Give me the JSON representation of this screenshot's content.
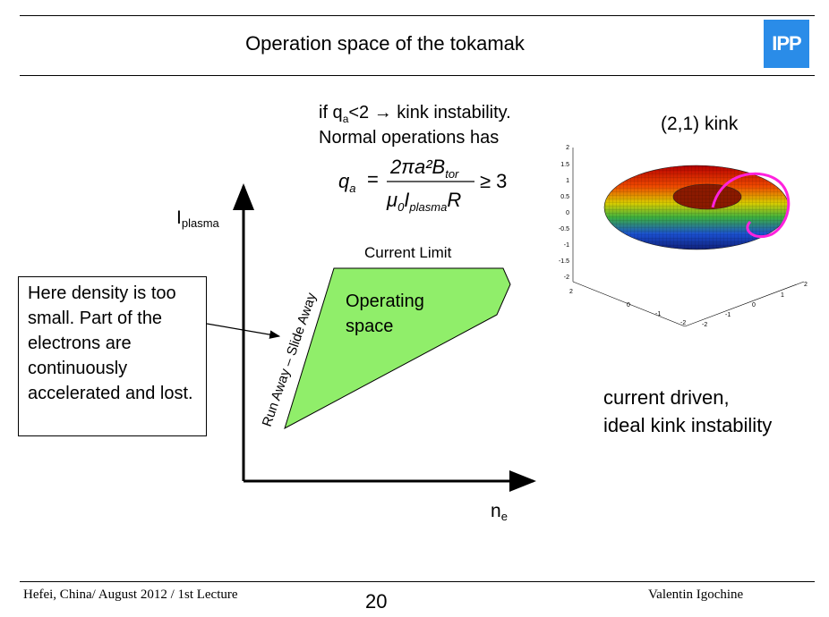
{
  "slide": {
    "title": "Operation space of the tokamak",
    "logo_text": "IPP",
    "accent_color": "#2a8ce8"
  },
  "kink_condition": {
    "line1_prefix": "if q",
    "line1_sub": "a",
    "line1_suffix": "<2 →  kink instability.",
    "line2": "Normal operations has"
  },
  "formula": {
    "lhs": "q",
    "lhs_sub": "a",
    "numerator": "2πa²B",
    "numerator_sub": "tor",
    "denominator_a": "μ",
    "denominator_a_sub": "0",
    "denominator_b": "I",
    "denominator_b_sub": "plasma",
    "denominator_c": "R",
    "rhs": "≥ 3"
  },
  "diagram": {
    "y_axis_label": "I",
    "y_axis_sub": "plasma",
    "x_axis_label": "n",
    "x_axis_sub": "e",
    "current_limit_label": "Current Limit",
    "operating_space_line1": "Operating",
    "operating_space_line2": "space",
    "runaway_label": "Run Away – Slide Away",
    "operating_fill_color": "#90ee6a"
  },
  "callout": {
    "text": "Here density is too small. Part of the electrons are continuously accelerated and lost."
  },
  "kink_panel": {
    "title": "(2,1) kink",
    "z_ticks": [
      "2",
      "1.5",
      "1",
      "0.5",
      "0",
      "-0.5",
      "-1",
      "-1.5",
      "-2"
    ],
    "x_ticks": [
      "2",
      "0",
      "-1",
      "-2"
    ],
    "y_ticks": [
      "2",
      "1",
      "0",
      "-1",
      "-2"
    ],
    "kink_color": "#ff22dd",
    "caption_line1": "current driven,",
    "caption_line2": "ideal kink instability"
  },
  "footer": {
    "left": "Hefei, China/ August 2012 / 1st Lecture",
    "page_number": "20",
    "right": "Valentin Igochine"
  }
}
